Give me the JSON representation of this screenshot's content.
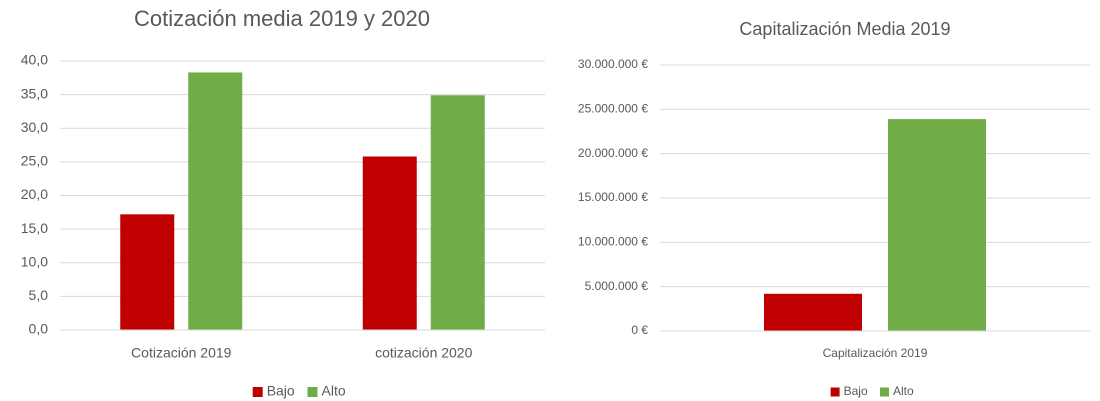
{
  "chart_data": [
    {
      "type": "bar",
      "title": "Cotización media 2019 y 2020",
      "categories": [
        "Cotización 2019",
        "cotización 2020"
      ],
      "series": [
        {
          "name": "Bajo",
          "color": "#c00000",
          "values": [
            17.2,
            25.8
          ]
        },
        {
          "name": "Alto",
          "color": "#70ad47",
          "values": [
            38.3,
            34.9
          ]
        }
      ],
      "ylim": [
        0,
        40
      ],
      "yticks": [
        {
          "value": 0,
          "label": "0,0"
        },
        {
          "value": 5,
          "label": "5,0"
        },
        {
          "value": 10,
          "label": "10,0"
        },
        {
          "value": 15,
          "label": "15,0"
        },
        {
          "value": 20,
          "label": "20,0"
        },
        {
          "value": 25,
          "label": "25,0"
        },
        {
          "value": 30,
          "label": "30,0"
        },
        {
          "value": 35,
          "label": "35,0"
        },
        {
          "value": 40,
          "label": "40,0"
        }
      ],
      "grid": true,
      "legend": "bottom"
    },
    {
      "type": "bar",
      "title": "Capitalización Media 2019",
      "categories": [
        "Capitalización 2019"
      ],
      "series": [
        {
          "name": "Bajo",
          "color": "#c00000",
          "values": [
            4200000
          ]
        },
        {
          "name": "Alto",
          "color": "#70ad47",
          "values": [
            23900000
          ]
        }
      ],
      "ylim": [
        0,
        30000000
      ],
      "yticks": [
        {
          "value": 0,
          "label": "0 €"
        },
        {
          "value": 5000000,
          "label": "5.000.000 €"
        },
        {
          "value": 10000000,
          "label": "10.000.000 €"
        },
        {
          "value": 15000000,
          "label": "15.000.000 €"
        },
        {
          "value": 20000000,
          "label": "20.000.000 €"
        },
        {
          "value": 25000000,
          "label": "25.000.000 €"
        },
        {
          "value": 30000000,
          "label": "30.000.000 €"
        }
      ],
      "grid": true,
      "legend": "bottom"
    }
  ]
}
